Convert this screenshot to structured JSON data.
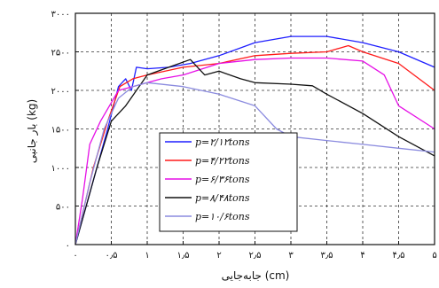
{
  "chart_data": {
    "type": "line",
    "xlabel": "جابه‌جایی (cm)",
    "ylabel": "بار جانبی (kg)",
    "xlim": [
      0,
      5
    ],
    "ylim": [
      0,
      3000
    ],
    "x_ticks": [
      0,
      0.5,
      1,
      1.5,
      2,
      2.5,
      3,
      3.5,
      4,
      4.5,
      5
    ],
    "x_tick_labels": [
      "۰",
      "۰٫۵",
      "۱",
      "۱٫۵",
      "۲",
      "۲٫۵",
      "۳",
      "۳٫۵",
      "۴",
      "۴٫۵",
      "۵"
    ],
    "y_ticks": [
      0,
      500,
      1000,
      1500,
      2000,
      2500,
      3000
    ],
    "y_tick_labels": [
      "۰",
      "۵۰۰",
      "۱۰۰۰",
      "۱۵۰۰",
      "۲۰۰۰",
      "۲۵۰۰",
      "۳۰۰۰"
    ],
    "grid": true,
    "legend_position": "bottom-center",
    "series": [
      {
        "name": "p=۲/۱۲tons",
        "color": "#1f1fff",
        "points": [
          [
            0,
            0
          ],
          [
            0.15,
            500
          ],
          [
            0.3,
            1000
          ],
          [
            0.45,
            1500
          ],
          [
            0.6,
            2050
          ],
          [
            0.7,
            2150
          ],
          [
            0.78,
            2000
          ],
          [
            0.85,
            2300
          ],
          [
            1.0,
            2280
          ],
          [
            1.3,
            2300
          ],
          [
            1.6,
            2350
          ],
          [
            2.0,
            2450
          ],
          [
            2.5,
            2620
          ],
          [
            3.0,
            2700
          ],
          [
            3.5,
            2700
          ],
          [
            4.0,
            2620
          ],
          [
            4.5,
            2500
          ],
          [
            5.0,
            2300
          ]
        ]
      },
      {
        "name": "p=۴/۲۲tons",
        "color": "#ff1a1a",
        "points": [
          [
            0,
            0
          ],
          [
            0.1,
            400
          ],
          [
            0.25,
            1000
          ],
          [
            0.45,
            1600
          ],
          [
            0.62,
            2050
          ],
          [
            0.8,
            2150
          ],
          [
            1.0,
            2200
          ],
          [
            1.5,
            2300
          ],
          [
            2.0,
            2350
          ],
          [
            2.5,
            2450
          ],
          [
            3.0,
            2480
          ],
          [
            3.5,
            2500
          ],
          [
            3.8,
            2580
          ],
          [
            4.0,
            2500
          ],
          [
            4.5,
            2350
          ],
          [
            5.0,
            2000
          ]
        ]
      },
      {
        "name": "p=۶/۳۶tons",
        "color": "#e60fe6",
        "points": [
          [
            0,
            0
          ],
          [
            0.1,
            600
          ],
          [
            0.2,
            1300
          ],
          [
            0.35,
            1600
          ],
          [
            0.6,
            2000
          ],
          [
            0.8,
            2050
          ],
          [
            1.0,
            2100
          ],
          [
            1.2,
            2150
          ],
          [
            1.5,
            2200
          ],
          [
            2.0,
            2350
          ],
          [
            2.5,
            2400
          ],
          [
            3.0,
            2420
          ],
          [
            3.5,
            2420
          ],
          [
            4.0,
            2380
          ],
          [
            4.3,
            2200
          ],
          [
            4.5,
            1800
          ],
          [
            5.0,
            1500
          ]
        ]
      },
      {
        "name": "p=۸/۴۸tons",
        "color": "#111111",
        "points": [
          [
            0,
            0
          ],
          [
            0.15,
            500
          ],
          [
            0.3,
            1000
          ],
          [
            0.5,
            1600
          ],
          [
            0.7,
            1800
          ],
          [
            1.0,
            2200
          ],
          [
            1.3,
            2300
          ],
          [
            1.6,
            2400
          ],
          [
            1.8,
            2200
          ],
          [
            2.0,
            2250
          ],
          [
            2.3,
            2150
          ],
          [
            2.5,
            2100
          ],
          [
            3.0,
            2080
          ],
          [
            3.3,
            2060
          ],
          [
            3.5,
            1950
          ],
          [
            4.0,
            1700
          ],
          [
            4.5,
            1400
          ],
          [
            5.0,
            1150
          ]
        ]
      },
      {
        "name": "p=۱۰/۶tons",
        "color": "#8b8bdf",
        "points": [
          [
            0,
            0
          ],
          [
            0.2,
            800
          ],
          [
            0.4,
            1500
          ],
          [
            0.6,
            1900
          ],
          [
            0.8,
            2050
          ],
          [
            1.0,
            2100
          ],
          [
            1.5,
            2050
          ],
          [
            2.0,
            1950
          ],
          [
            2.5,
            1800
          ],
          [
            2.8,
            1500
          ],
          [
            3.0,
            1400
          ],
          [
            3.5,
            1350
          ],
          [
            4.0,
            1300
          ],
          [
            4.5,
            1250
          ],
          [
            5.0,
            1200
          ]
        ]
      }
    ]
  }
}
